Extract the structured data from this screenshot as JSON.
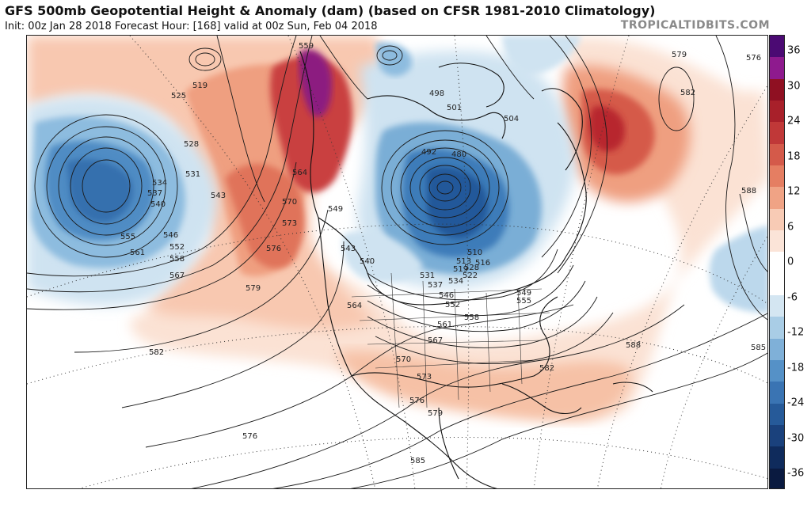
{
  "header": {
    "title": "GFS 500mb Geopotential Height & Anomaly (dam) (based on CFSR 1981-2010 Climatology)",
    "subtitle": "Init: 00z Jan 28 2018   Forecast Hour: [168]   valid at 00z Sun, Feb 04 2018",
    "brand": "TROPICALTIDBITS.COM"
  },
  "colorbar": {
    "ticks": [
      "36",
      "30",
      "24",
      "18",
      "12",
      "6",
      "0",
      "-6",
      "-12",
      "-18",
      "-24",
      "-30",
      "-36"
    ],
    "colors": [
      "#4b0a73",
      "#8e1a8e",
      "#8f1022",
      "#a8202a",
      "#c03838",
      "#d45a4a",
      "#e57e62",
      "#f0a385",
      "#f8cbb5",
      "#fbe4d8",
      "#ffffff",
      "#ffffff",
      "#d4e6f2",
      "#a9cde6",
      "#7fb0d8",
      "#5591c7",
      "#3a74b3",
      "#265a99",
      "#1a417c",
      "#0f2b5c",
      "#0a1a40"
    ]
  },
  "map": {
    "contour_labels": [
      "519",
      "525",
      "528",
      "531",
      "534",
      "537",
      "540",
      "543",
      "546",
      "549",
      "552",
      "555",
      "558",
      "561",
      "564",
      "567",
      "570",
      "573",
      "576",
      "579",
      "582",
      "585",
      "588",
      "498",
      "501",
      "504",
      "492",
      "480",
      "510",
      "513",
      "516",
      "519",
      "522",
      "528",
      "531",
      "534",
      "537",
      "540",
      "543",
      "546",
      "549",
      "552",
      "555",
      "558",
      "561",
      "564",
      "567",
      "570",
      "573",
      "576",
      "579",
      "582",
      "585",
      "559",
      "576",
      "582",
      "579",
      "576",
      "588"
    ]
  }
}
